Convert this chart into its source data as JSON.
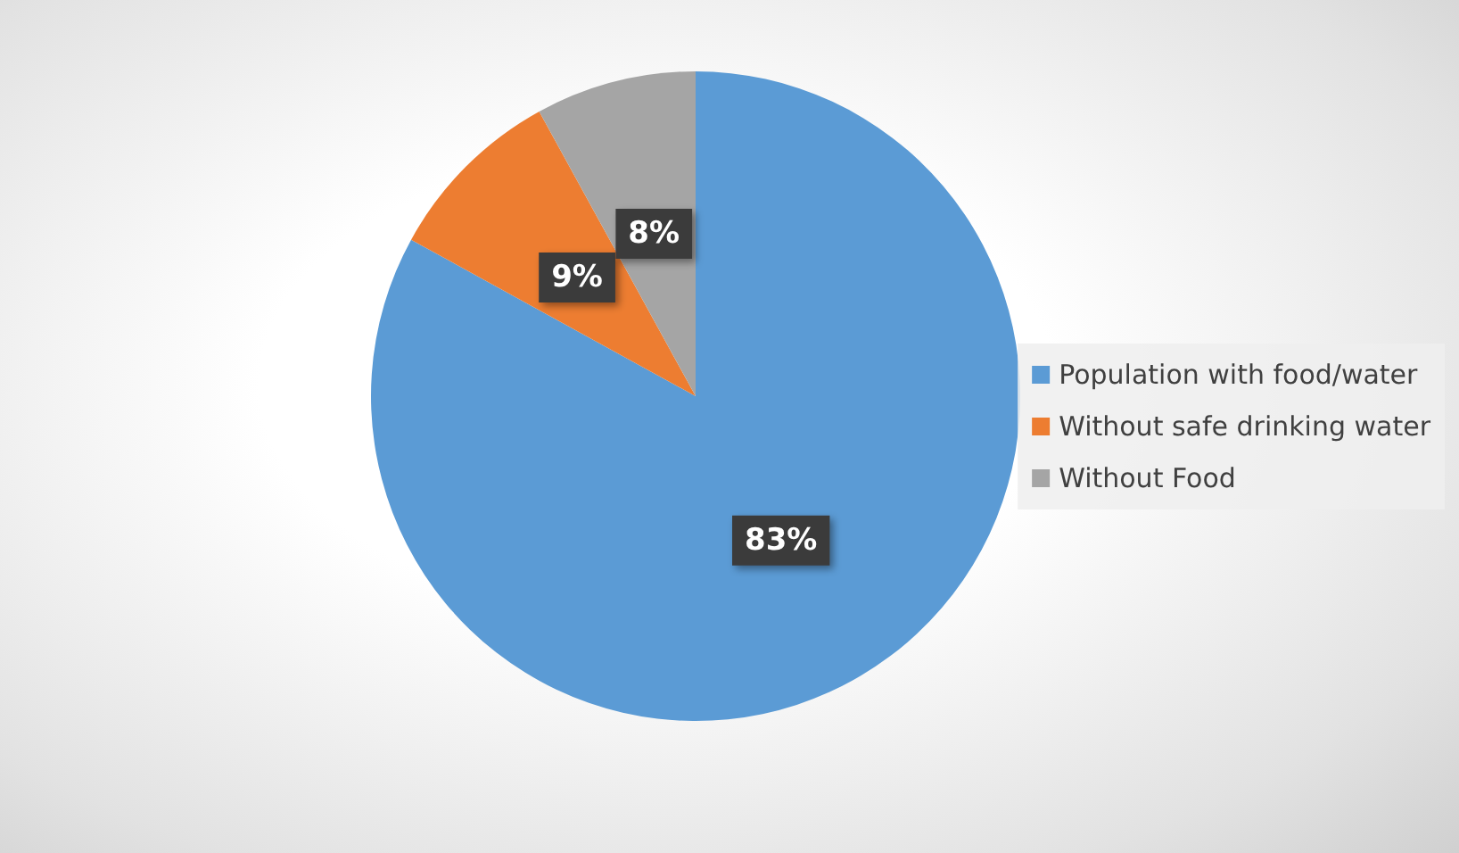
{
  "chart_data": {
    "type": "pie",
    "categories": [
      "Population with food/water",
      "Without safe drinking water",
      "Without Food"
    ],
    "values": [
      83,
      9,
      8
    ],
    "colors": [
      "#5b9bd5",
      "#ed7d31",
      "#a5a5a5"
    ],
    "value_labels": [
      "83%",
      "9%",
      "8%"
    ],
    "legend": "right"
  }
}
